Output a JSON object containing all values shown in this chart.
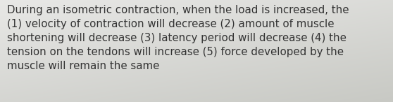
{
  "text": "During an isometric contraction, when the load is increased, the\n(1) velocity of contraction will decrease (2) amount of muscle\nshortening will decrease (3) latency period will decrease (4) the\ntension on the tendons will increase (5) force developed by the\nmuscle will remain the same",
  "bg_color_topleft": "#e8e8e6",
  "bg_color_bottomright": "#c8c9c4",
  "text_color": "#333333",
  "font_size": 10.8,
  "fig_width": 5.58,
  "fig_height": 1.46,
  "dpi": 100
}
